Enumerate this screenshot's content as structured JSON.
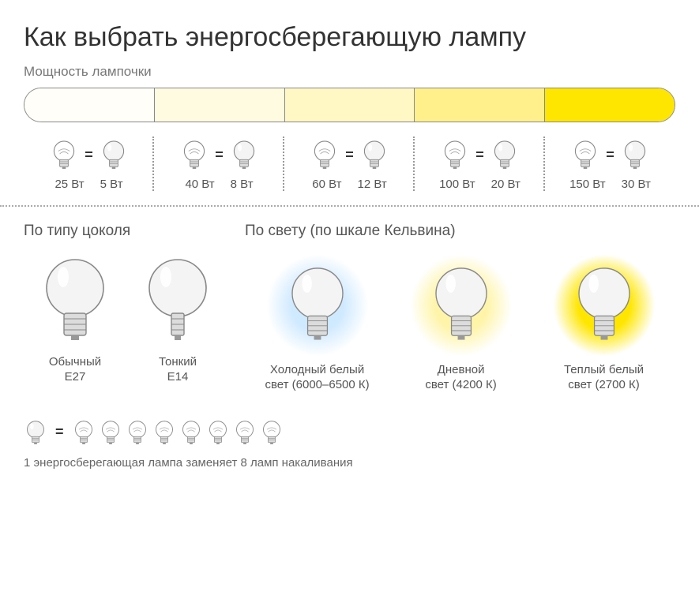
{
  "title": "Как выбрать энергосберегающую лампу",
  "power_label": "Мощность лампочки",
  "power_bar": {
    "border_color": "#888888",
    "segments": [
      "#fffef8",
      "#fffbe0",
      "#fff7c4",
      "#fff08c",
      "#ffe600"
    ]
  },
  "wattage_pairs": [
    {
      "incandescent": "25 Вт",
      "eco": "5 Вт"
    },
    {
      "incandescent": "40 Вт",
      "eco": "8 Вт"
    },
    {
      "incandescent": "60 Вт",
      "eco": "12 Вт"
    },
    {
      "incandescent": "100 Вт",
      "eco": "20 Вт"
    },
    {
      "incandescent": "150 Вт",
      "eco": "30 Вт"
    }
  ],
  "base_section": {
    "heading": "По типу цоколя",
    "items": [
      {
        "name": "Обычный",
        "code": "Е27",
        "base_scale": 1.0
      },
      {
        "name": "Тонкий",
        "code": "Е14",
        "base_scale": 0.65
      }
    ]
  },
  "light_section": {
    "heading": "По свету (по шкале Кельвина)",
    "items": [
      {
        "name": "Холодный белый",
        "sub": "свет (6000–6500 К)",
        "glow_inner": "#cfe9ff",
        "glow_outer": "#ffffff"
      },
      {
        "name": "Дневной",
        "sub": "свет (4200 К)",
        "glow_inner": "#fff4a8",
        "glow_outer": "#ffffff"
      },
      {
        "name": "Теплый белый",
        "sub": "свет (2700 К)",
        "glow_inner": "#ffe600",
        "glow_outer": "#ffffff"
      }
    ]
  },
  "footer": {
    "eco_count": 1,
    "incandescent_count": 8,
    "caption": "1 энергосберегающая лампа заменяет 8 ламп накаливания"
  },
  "colors": {
    "text": "#555555",
    "title": "#333333",
    "bulb_stroke": "#888888",
    "bulb_fill": "#f6f6f6",
    "base_fill": "#dcdcdc"
  }
}
